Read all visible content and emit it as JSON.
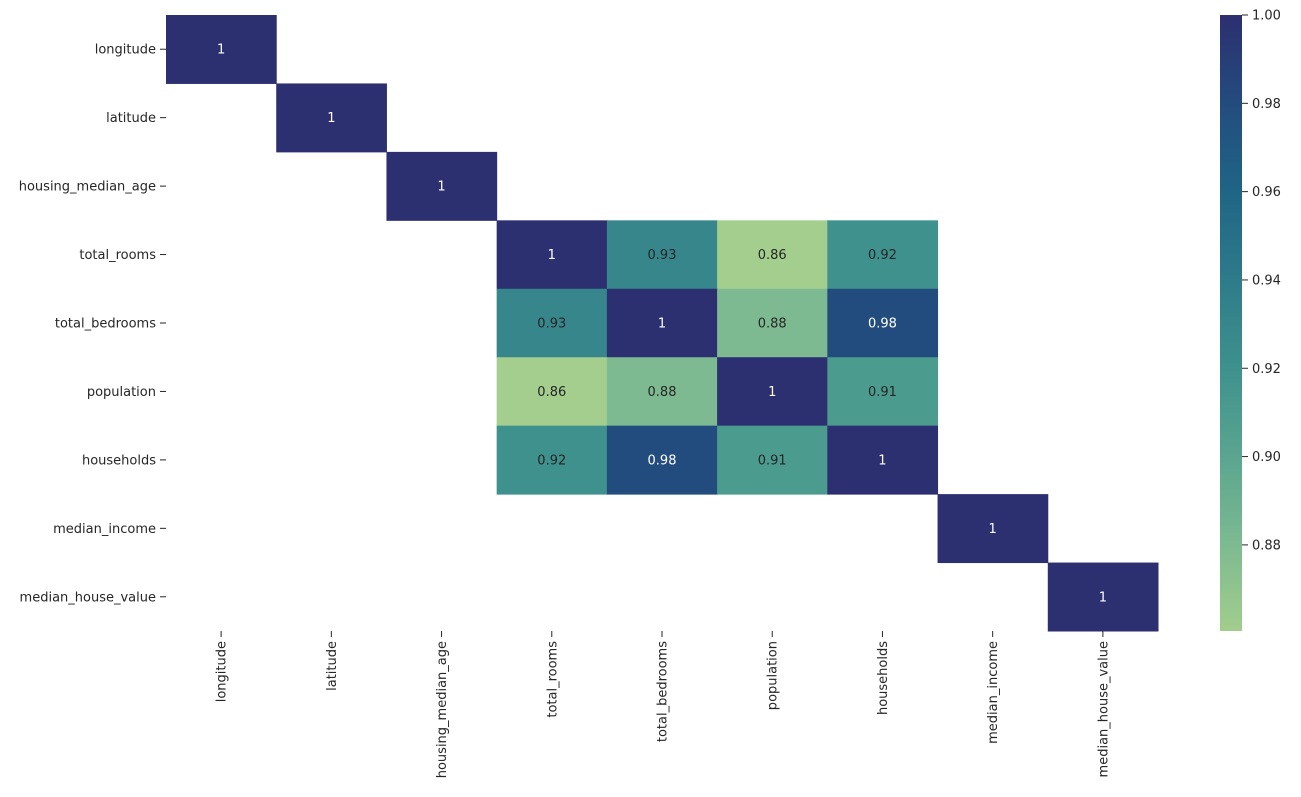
{
  "chart_data": {
    "type": "heatmap",
    "title": "",
    "xlabel": "",
    "ylabel": "",
    "labels": [
      "longitude",
      "latitude",
      "housing_median_age",
      "total_rooms",
      "total_bedrooms",
      "population",
      "households",
      "median_income",
      "median_house_value"
    ],
    "matrix": [
      [
        1,
        null,
        null,
        null,
        null,
        null,
        null,
        null,
        null
      ],
      [
        null,
        1,
        null,
        null,
        null,
        null,
        null,
        null,
        null
      ],
      [
        null,
        null,
        1,
        null,
        null,
        null,
        null,
        null,
        null
      ],
      [
        null,
        null,
        null,
        1,
        0.93,
        0.86,
        0.92,
        null,
        null
      ],
      [
        null,
        null,
        null,
        0.93,
        1,
        0.88,
        0.98,
        null,
        null
      ],
      [
        null,
        null,
        null,
        0.86,
        0.88,
        1,
        0.91,
        null,
        null
      ],
      [
        null,
        null,
        null,
        0.92,
        0.98,
        0.91,
        1,
        null,
        null
      ],
      [
        null,
        null,
        null,
        null,
        null,
        null,
        null,
        1,
        null
      ],
      [
        null,
        null,
        null,
        null,
        null,
        null,
        null,
        null,
        1
      ]
    ],
    "annotations": [
      [
        "1",
        "",
        "",
        "",
        "",
        "",
        "",
        "",
        ""
      ],
      [
        "",
        "1",
        "",
        "",
        "",
        "",
        "",
        "",
        ""
      ],
      [
        "",
        "",
        "1",
        "",
        "",
        "",
        "",
        "",
        ""
      ],
      [
        "",
        "",
        "",
        "1",
        "0.93",
        "0.86",
        "0.92",
        "",
        ""
      ],
      [
        "",
        "",
        "",
        "0.93",
        "1",
        "0.88",
        "0.98",
        "",
        ""
      ],
      [
        "",
        "",
        "",
        "0.86",
        "0.88",
        "1",
        "0.91",
        "",
        ""
      ],
      [
        "",
        "",
        "",
        "0.92",
        "0.98",
        "0.91",
        "1",
        "",
        ""
      ],
      [
        "",
        "",
        "",
        "",
        "",
        "",
        "",
        "1",
        ""
      ],
      [
        "",
        "",
        "",
        "",
        "",
        "",
        "",
        "",
        "1"
      ]
    ],
    "colormap": "crest",
    "colorbar": {
      "range": [
        0.8605,
        1.0
      ],
      "ticks": [
        "0.88",
        "0.90",
        "0.92",
        "0.94",
        "0.96",
        "0.98",
        "1.00"
      ],
      "tick_values": [
        0.88,
        0.9,
        0.92,
        0.94,
        0.96,
        0.98,
        1.0
      ],
      "stops": [
        {
          "v": 0.86,
          "c": "#a3ce8d"
        },
        {
          "v": 0.88,
          "c": "#7dba91"
        },
        {
          "v": 0.9,
          "c": "#5aa590"
        },
        {
          "v": 0.92,
          "c": "#3e918d"
        },
        {
          "v": 0.94,
          "c": "#2e7b8a"
        },
        {
          "v": 0.96,
          "c": "#1f6585"
        },
        {
          "v": 0.98,
          "c": "#234c7e"
        },
        {
          "v": 1.0,
          "c": "#2c2f70"
        }
      ]
    },
    "grid": false,
    "legend": "right colorbar"
  }
}
